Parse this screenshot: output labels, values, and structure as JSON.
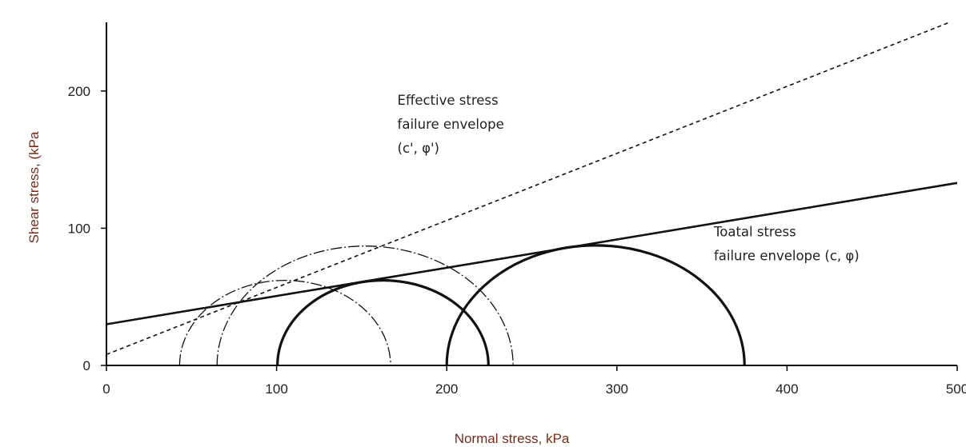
{
  "chart_data": {
    "type": "line",
    "title": "",
    "xlabel": "Normal stress, kPa",
    "ylabel": "Shear stress, (kPa",
    "xlim": [
      0,
      500
    ],
    "ylim": [
      0,
      250
    ],
    "xticks": [
      "0",
      "100",
      "200",
      "300",
      "400",
      "500"
    ],
    "yticks": [
      "0",
      "100",
      "200"
    ],
    "grid": false,
    "series": [
      {
        "kind": "envelope",
        "style": "dashed",
        "points": [
          [
            0,
            8
          ],
          [
            520,
            262
          ]
        ]
      },
      {
        "kind": "envelope",
        "style": "solid",
        "points": [
          [
            0,
            30
          ],
          [
            500,
            133
          ]
        ]
      },
      {
        "kind": "circle",
        "style": "thin-dash-dot",
        "center": 105,
        "radius": 62
      },
      {
        "kind": "circle",
        "style": "thin-dash-dot",
        "center": 152,
        "radius": 87
      },
      {
        "kind": "circle",
        "style": "bold",
        "center": 162.5,
        "radius": 62
      },
      {
        "kind": "circle",
        "style": "bold",
        "center": 287.5,
        "radius": 87.5
      }
    ],
    "annotations": [
      {
        "lines": [
          "Effective stress",
          "failure envelope",
          "(c', φ')"
        ],
        "x": 171,
        "y": 190
      },
      {
        "lines": [
          "Toatal stress",
          "failure envelope (c, φ)"
        ],
        "x": 357,
        "y": 94
      }
    ]
  }
}
